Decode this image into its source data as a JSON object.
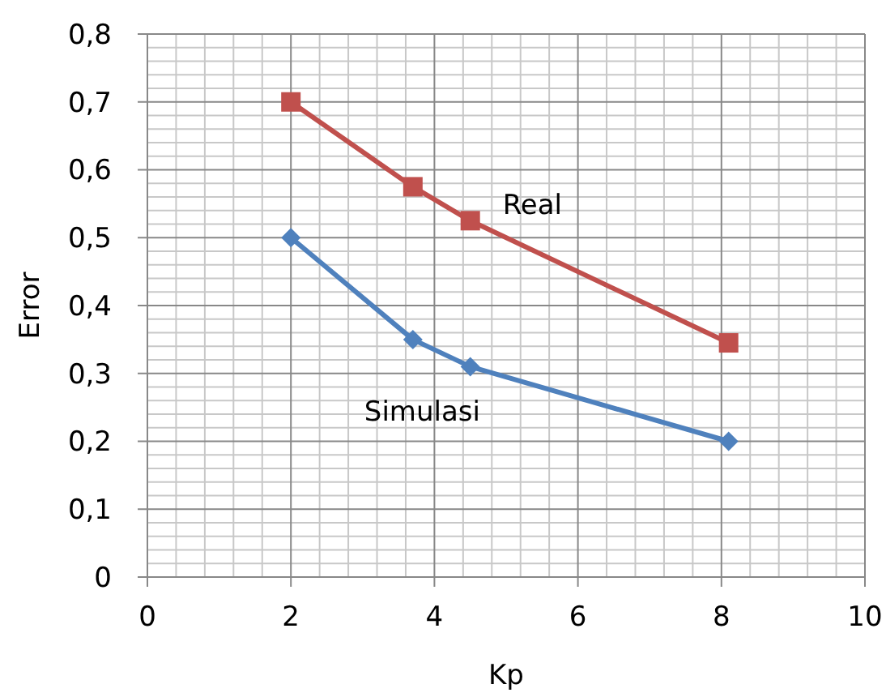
{
  "chart_data": {
    "type": "line",
    "xlabel": "Kp",
    "ylabel": "Error",
    "xlim": [
      0,
      10
    ],
    "xticks": [
      0,
      2,
      4,
      6,
      8,
      10
    ],
    "ylim": [
      0,
      0.8
    ],
    "yticks": [
      0,
      {
        "value": 0.1,
        "label": "0,1"
      },
      {
        "value": 0.2,
        "label": "0,2"
      },
      {
        "value": 0.3,
        "label": "0,3"
      },
      {
        "value": 0.4,
        "label": "0,4"
      },
      {
        "value": 0.5,
        "label": "0,5"
      },
      {
        "value": 0.6,
        "label": "0,6"
      },
      {
        "value": 0.7,
        "label": "0,7"
      },
      {
        "value": 0.8,
        "label": "0,8"
      }
    ],
    "grid": true,
    "line_style": "solid",
    "series": [
      {
        "name": "Real",
        "color": "#c0504d",
        "marker": "square",
        "x": [
          2,
          3.7,
          4.5,
          8.1
        ],
        "values": [
          0.7,
          0.575,
          0.525,
          0.345
        ]
      },
      {
        "name": "Simulasi",
        "color": "#4f81bd",
        "marker": "diamond",
        "x": [
          2,
          3.7,
          4.5,
          8.1
        ],
        "values": [
          0.5,
          0.35,
          0.31,
          0.2
        ]
      }
    ]
  }
}
